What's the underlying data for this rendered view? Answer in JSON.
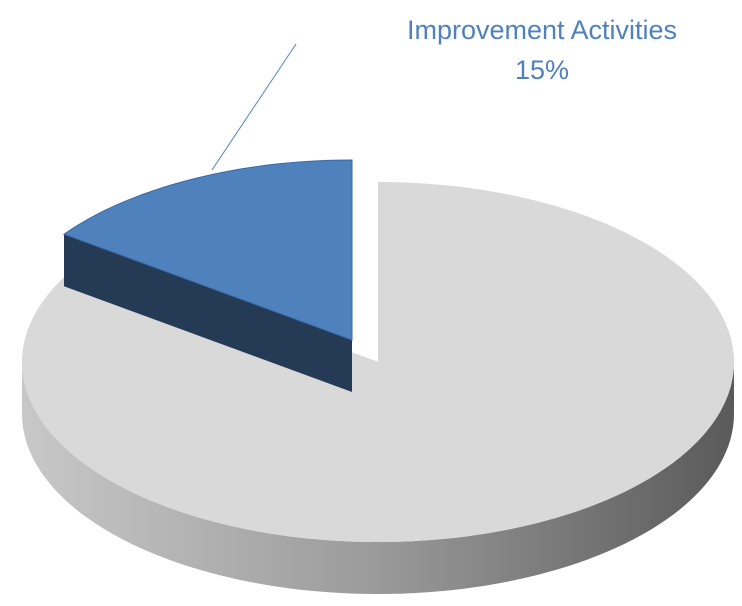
{
  "chart_data": {
    "type": "pie",
    "categories": [
      "Improvement Activities",
      null
    ],
    "values": [
      15,
      85
    ],
    "value_labels": [
      "15%",
      null
    ],
    "colors": [
      "#4f81bd",
      "#d9d9d9"
    ]
  }
}
